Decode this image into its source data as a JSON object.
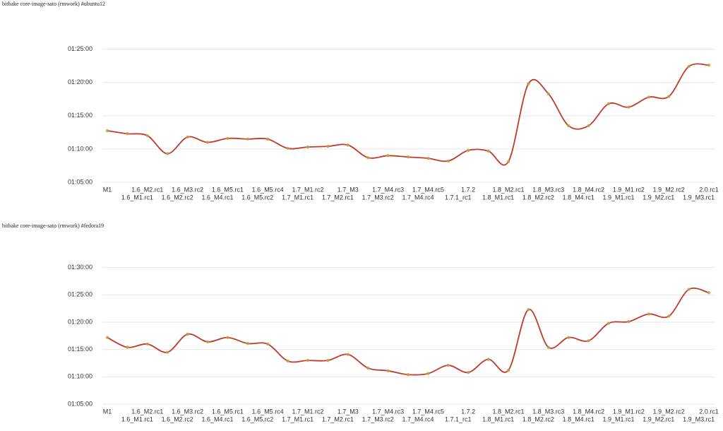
{
  "chart_data": [
    {
      "type": "line",
      "title": "bitbake core-image-sato (rmwork) #ubuntu12",
      "categories": [
        "M1",
        "1.6_M1.rc1",
        "1.6_M2.rc1",
        "1.6_M2.rc2",
        "1.6_M3.rc2",
        "1.6_M4.rc1",
        "1.6_M5.rc1",
        "1.6_M5.rc2",
        "1.6_M5.rc4",
        "1.7_M1.rc1",
        "1.7_M1.rc2",
        "1.7_M2.rc1",
        "1.7_M3",
        "1.7_M3.rc2",
        "1.7_M4.rc3",
        "1.7_M4.rc4",
        "1.7_M4.rc5",
        "1.7.1_rc1",
        "1.7.2",
        "1.8_M1.rc1",
        "1.8_M2.rc1",
        "1.8_M2.rc2",
        "1.8_M3.rc3",
        "1.8_M4.rc1",
        "1.8_M4.rc2",
        "1.9_M1.rc1",
        "1.9_M1.rc2",
        "1.9_M2.rc1",
        "1.9_M2.rc2",
        "1.9_M3.rc1",
        "2.0.rc1"
      ],
      "values": [
        72.75,
        72.3,
        72.0,
        69.3,
        71.8,
        71.0,
        71.6,
        71.5,
        71.5,
        70.1,
        70.3,
        70.4,
        70.6,
        68.7,
        69.0,
        68.8,
        68.6,
        68.2,
        69.8,
        69.7,
        68.1,
        79.8,
        78.3,
        73.5,
        73.5,
        76.8,
        76.3,
        77.8,
        77.9,
        82.4,
        82.6
      ],
      "color": "#c0392b",
      "ylim": [
        65,
        87.3
      ],
      "yticks": [
        {
          "value": 65,
          "label": "01:05:00"
        },
        {
          "value": 70,
          "label": "01:10:00"
        },
        {
          "value": 75,
          "label": "01:15:00"
        },
        {
          "value": 80,
          "label": "01:20:00"
        },
        {
          "value": 85,
          "label": "01:25:00"
        }
      ],
      "grid": true
    },
    {
      "type": "line",
      "title": "bitbake core-image-sato (rmwork) #fedora19",
      "categories": [
        "M1",
        "1.6_M1.rc1",
        "1.6_M2.rc1",
        "1.6_M2.rc2",
        "1.6_M3.rc2",
        "1.6_M4.rc1",
        "1.6_M5.rc1",
        "1.6_M5.rc2",
        "1.6_M5.rc4",
        "1.7_M1.rc1",
        "1.7_M1.rc2",
        "1.7_M2.rc1",
        "1.7_M3",
        "1.7_M3.rc2",
        "1.7_M4.rc3",
        "1.7_M4.rc4",
        "1.7_M4.rc5",
        "1.7.1_rc1",
        "1.7.2",
        "1.8_M1.rc1",
        "1.8_M2.rc1",
        "1.8_M2.rc2",
        "1.8_M3.rc3",
        "1.8_M4.rc1",
        "1.8_M4.rc2",
        "1.9_M1.rc1",
        "1.9_M1.rc2",
        "1.9_M2.rc1",
        "1.9_M2.rc2",
        "1.9_M3.rc1",
        "2.0.rc1"
      ],
      "values": [
        77.2,
        75.4,
        76.0,
        74.5,
        77.8,
        76.4,
        77.2,
        76.1,
        76.0,
        72.9,
        73.0,
        73.0,
        74.1,
        71.6,
        71.1,
        70.4,
        70.6,
        72.1,
        70.8,
        73.2,
        71.2,
        82.3,
        75.4,
        77.2,
        76.6,
        79.8,
        80.1,
        81.5,
        81.1,
        86.0,
        85.4
      ],
      "color": "#c0392b",
      "ylim": [
        65,
        92.8
      ],
      "yticks": [
        {
          "value": 65,
          "label": "01:05:00"
        },
        {
          "value": 70,
          "label": "01:10:00"
        },
        {
          "value": 75,
          "label": "01:15:00"
        },
        {
          "value": 80,
          "label": "01:20:00"
        },
        {
          "value": 85,
          "label": "01:25:00"
        },
        {
          "value": 90,
          "label": "01:30:00"
        }
      ],
      "grid": true
    }
  ]
}
